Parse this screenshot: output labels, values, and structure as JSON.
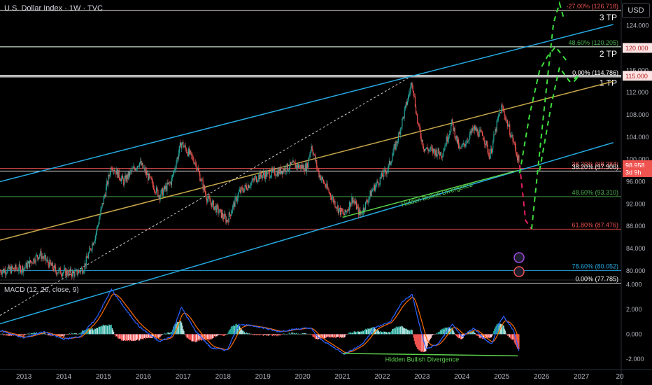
{
  "header": {
    "title": "U.S. Dollar Index · 1W · TVC",
    "currency_button": "USD",
    "macd_label": "MACD (12, 26, close, 9)"
  },
  "colors": {
    "bull": "#26a69a",
    "bear": "#ef5350",
    "channel": "#26a9e0",
    "midline": "#c8a84a",
    "fib_green": "#4caf50",
    "fib_red": "#ef5350",
    "target_white": "#ffffff",
    "macd": "#2962ff",
    "signal": "#ff6d00",
    "divergence": "#5bd14a",
    "projection": "#3ddc3d",
    "projection_down": "#e91e63"
  },
  "chart_data": [
    {
      "type": "candlestick",
      "title": "U.S. Dollar Index · 1W · TVC",
      "x_axis": {
        "ticks": [
          "2013",
          "2014",
          "2015",
          "2016",
          "2017",
          "2018",
          "2019",
          "2020",
          "2021",
          "2022",
          "2023",
          "2024",
          "2025",
          "2026",
          "2027",
          "20"
        ],
        "range": [
          2012.4,
          2028.0
        ]
      },
      "y_axis": {
        "ticks": [
          "124.000",
          "120.000",
          "116.000",
          "112.000",
          "108.000",
          "104.000",
          "100.000",
          "96.000",
          "92.000",
          "88.000",
          "84.000",
          "80.000"
        ],
        "range": [
          78.6,
          128.6
        ],
        "price_labels": [
          {
            "text": "120.000",
            "value": 120.0
          },
          {
            "text": "115.000",
            "value": 115.0
          },
          {
            "text": "98.958",
            "value": 98.958
          },
          {
            "text": "3d 9h",
            "value": 97.7
          }
        ]
      },
      "price_anchors": [
        [
          2012.4,
          80.0
        ],
        [
          2013.0,
          80.5
        ],
        [
          2013.4,
          83.0
        ],
        [
          2013.8,
          80.0
        ],
        [
          2014.3,
          79.5
        ],
        [
          2014.5,
          80.5
        ],
        [
          2014.8,
          86.5
        ],
        [
          2015.2,
          99.0
        ],
        [
          2015.5,
          96.0
        ],
        [
          2015.9,
          99.5
        ],
        [
          2016.4,
          93.5
        ],
        [
          2016.7,
          96.0
        ],
        [
          2016.95,
          103.0
        ],
        [
          2017.3,
          99.5
        ],
        [
          2017.6,
          93.0
        ],
        [
          2018.1,
          89.0
        ],
        [
          2018.4,
          94.0
        ],
        [
          2018.9,
          97.0
        ],
        [
          2019.4,
          97.8
        ],
        [
          2019.75,
          99.0
        ],
        [
          2020.1,
          98.5
        ],
        [
          2020.22,
          102.5
        ],
        [
          2020.4,
          97.5
        ],
        [
          2020.9,
          91.0
        ],
        [
          2021.05,
          90.0
        ],
        [
          2021.25,
          93.0
        ],
        [
          2021.45,
          90.0
        ],
        [
          2021.75,
          94.5
        ],
        [
          2022.15,
          98.5
        ],
        [
          2022.4,
          104.0
        ],
        [
          2022.75,
          114.0
        ],
        [
          2022.9,
          106.0
        ],
        [
          2023.05,
          102.0
        ],
        [
          2023.5,
          101.0
        ],
        [
          2023.75,
          106.5
        ],
        [
          2023.95,
          101.5
        ],
        [
          2024.3,
          105.5
        ],
        [
          2024.55,
          104.0
        ],
        [
          2024.7,
          100.5
        ],
        [
          2024.9,
          107.0
        ],
        [
          2025.0,
          109.5
        ],
        [
          2025.3,
          103.0
        ],
        [
          2025.45,
          98.958
        ]
      ],
      "channel_lines": [
        {
          "name": "upper-channel",
          "from": [
            2012.4,
            96.0
          ],
          "to": [
            2027.8,
            124.2
          ]
        },
        {
          "name": "lower-channel",
          "from": [
            2012.4,
            70.5
          ],
          "to": [
            2027.8,
            103.0
          ]
        },
        {
          "name": "mid-line",
          "from": [
            2012.4,
            85.5
          ],
          "to": [
            2027.8,
            114.0
          ]
        }
      ],
      "fib_levels": [
        {
          "label": "-27.00% (126.718)",
          "value": 126.718,
          "color": "#ef5350"
        },
        {
          "label": "48.60% (120.205)",
          "value": 120.205,
          "color": "#4caf50"
        },
        {
          "label": "0.00% (114.786)",
          "value": 114.786,
          "color": "#ffffff"
        },
        {
          "label": "38.20% (98.384)",
          "value": 98.384,
          "color": "#ef5350"
        },
        {
          "label": "38.20% (97.906)",
          "value": 97.906,
          "color": "#ffffff"
        },
        {
          "label": "48.60% (93.310)",
          "value": 93.31,
          "color": "#4caf50"
        },
        {
          "label": "61.80% (87.476)",
          "value": 87.476,
          "color": "#ef5350"
        },
        {
          "label": "78.60% (80.052)",
          "value": 80.052,
          "color": "#26a9e0"
        },
        {
          "label": "0.00% (77.785)",
          "value": 77.785,
          "color": "#ffffff"
        }
      ],
      "targets": [
        {
          "label": "3 TP",
          "value": 126.718
        },
        {
          "label": "2 TP",
          "value": 120.205
        },
        {
          "label": "1 TP",
          "value": 115.0
        }
      ],
      "annotations": [
        {
          "text": "Hidden Bullish Divergence",
          "from": [
            2021.0,
            89.6
          ],
          "to": [
            2025.4,
            98.0
          ]
        }
      ],
      "projection": {
        "down": [
          [
            2025.45,
            98.958
          ],
          [
            2025.6,
            89.0
          ],
          [
            2025.75,
            87.5
          ]
        ],
        "up_paths": [
          [
            [
              2025.75,
              87.5
            ],
            [
              2026.05,
              108.0
            ],
            [
              2026.3,
              124.5
            ],
            [
              2026.45,
              128.0
            ],
            [
              2026.55,
              125.5
            ]
          ],
          [
            [
              2025.45,
              97.5
            ],
            [
              2025.7,
              108.0
            ],
            [
              2025.95,
              116.0
            ],
            [
              2026.15,
              118.5
            ],
            [
              2026.35,
              120.2
            ],
            [
              2026.65,
              117.5
            ]
          ],
          [
            [
              2025.95,
              98.0
            ],
            [
              2026.25,
              110.0
            ],
            [
              2026.45,
              116.5
            ],
            [
              2026.7,
              114.0
            ],
            [
              2026.95,
              115.0
            ],
            [
              2026.75,
              113.5
            ]
          ]
        ]
      }
    },
    {
      "type": "line",
      "title": "MACD (12, 26, close, 9)",
      "y_axis": {
        "ticks": [
          "4.000",
          "2.000",
          "0.000",
          "-2.000"
        ],
        "range": [
          -2.8,
          4.2
        ]
      },
      "macd_anchors": [
        [
          2012.4,
          0.3
        ],
        [
          2013.0,
          -0.3
        ],
        [
          2013.5,
          0.2
        ],
        [
          2014.0,
          -0.4
        ],
        [
          2014.4,
          -0.2
        ],
        [
          2014.8,
          1.2
        ],
        [
          2015.2,
          3.6
        ],
        [
          2015.6,
          1.8
        ],
        [
          2015.9,
          0.6
        ],
        [
          2016.4,
          -0.6
        ],
        [
          2016.7,
          -0.2
        ],
        [
          2016.95,
          2.2
        ],
        [
          2017.3,
          0.3
        ],
        [
          2017.7,
          -1.1
        ],
        [
          2018.1,
          -1.3
        ],
        [
          2018.4,
          0.8
        ],
        [
          2018.9,
          0.6
        ],
        [
          2019.4,
          0.2
        ],
        [
          2019.8,
          0.4
        ],
        [
          2020.2,
          0.5
        ],
        [
          2020.4,
          -0.3
        ],
        [
          2020.9,
          -1.3
        ],
        [
          2021.05,
          -1.6
        ],
        [
          2021.5,
          -0.8
        ],
        [
          2021.8,
          0.5
        ],
        [
          2022.2,
          1.0
        ],
        [
          2022.5,
          2.6
        ],
        [
          2022.75,
          3.2
        ],
        [
          2022.95,
          0.5
        ],
        [
          2023.1,
          -1.2
        ],
        [
          2023.4,
          -0.8
        ],
        [
          2023.75,
          0.8
        ],
        [
          2024.0,
          -0.2
        ],
        [
          2024.3,
          0.5
        ],
        [
          2024.6,
          -0.5
        ],
        [
          2024.75,
          -0.8
        ],
        [
          2024.95,
          1.0
        ],
        [
          2025.05,
          1.4
        ],
        [
          2025.3,
          0.3
        ],
        [
          2025.45,
          -1.6
        ]
      ],
      "annotations": [
        {
          "text": "Hidden Bullish Divergence",
          "from": [
            2021.0,
            -1.55
          ],
          "to": [
            2025.4,
            -1.75
          ]
        }
      ]
    }
  ]
}
